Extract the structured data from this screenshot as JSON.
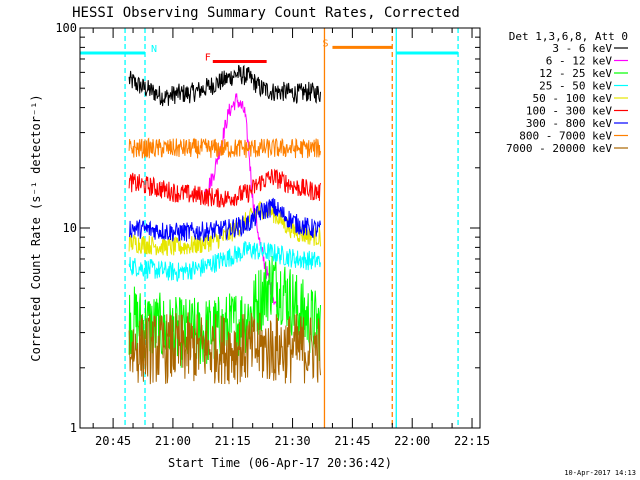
{
  "chart_data": {
    "type": "line",
    "title": "HESSI Observing Summary Count Rates, Corrected",
    "xlabel": "Start Time (06-Apr-17 20:36:42)",
    "ylabel": "Corrected Count Rate (s⁻¹ detector⁻¹)",
    "y_scale": "log",
    "ylim": [
      1,
      100
    ],
    "xlim": [
      "20:36:42",
      "22:17:00"
    ],
    "x_tick_labels": [
      "20:45",
      "21:00",
      "21:15",
      "21:30",
      "21:45",
      "22:00",
      "22:15"
    ],
    "y_tick_labels": [
      "1",
      "10",
      "100"
    ],
    "grid": false,
    "legend_position": "top-right",
    "legend_title": "Det 1,3,6,8, Att 0",
    "timestamp": "10-Apr-2017 14:13",
    "series": [
      {
        "name": "3 - 6 keV",
        "color": "#000000",
        "x": [
          "20:49",
          "20:52",
          "20:55",
          "20:58",
          "21:01",
          "21:04",
          "21:07",
          "21:10",
          "21:13",
          "21:16",
          "21:19",
          "21:22",
          "21:25",
          "21:28",
          "21:31",
          "21:34",
          "21:37"
        ],
        "y": [
          55,
          51,
          48,
          45,
          47,
          47,
          49,
          52,
          55,
          59,
          57,
          50,
          48,
          48,
          47,
          48,
          47
        ]
      },
      {
        "name": "6 - 12 keV",
        "color": "#ff00ff",
        "x": [
          "21:08",
          "21:10",
          "21:12",
          "21:14",
          "21:16",
          "21:18",
          "21:19",
          "21:20",
          "21:22",
          "21:24",
          "21:26"
        ],
        "y": [
          15,
          18,
          26,
          38,
          44,
          38,
          25,
          14,
          8,
          5.5,
          4
        ]
      },
      {
        "name": "12 - 25 keV",
        "color": "#00ff00",
        "x": [
          "20:49",
          "20:55",
          "21:01",
          "21:07",
          "21:13",
          "21:17",
          "21:19",
          "21:22",
          "21:25",
          "21:28",
          "21:31",
          "21:34",
          "21:37"
        ],
        "y": [
          3.5,
          3.2,
          3.0,
          3.0,
          3.1,
          3.4,
          3.6,
          4.5,
          5.5,
          4.8,
          4.0,
          3.5,
          3.2
        ]
      },
      {
        "name": "25 - 50 keV",
        "color": "#00ffff",
        "x": [
          "20:49",
          "20:55",
          "21:01",
          "21:07",
          "21:13",
          "21:19",
          "21:25",
          "21:31",
          "21:37"
        ],
        "y": [
          6.5,
          6.2,
          6.0,
          6.3,
          7.0,
          7.8,
          7.5,
          7.0,
          6.8
        ]
      },
      {
        "name": "50 - 100 keV",
        "color": "#e6e600",
        "x": [
          "20:49",
          "20:55",
          "21:01",
          "21:07",
          "21:13",
          "21:19",
          "21:22",
          "21:25",
          "21:28",
          "21:31",
          "21:34",
          "21:37"
        ],
        "y": [
          8.5,
          8.2,
          8.0,
          8.3,
          9.0,
          11.0,
          12.5,
          12.0,
          10.5,
          9.5,
          9.2,
          9.0
        ]
      },
      {
        "name": "100 - 300 keV",
        "color": "#ff0000",
        "x": [
          "20:49",
          "20:55",
          "21:01",
          "21:07",
          "21:13",
          "21:19",
          "21:22",
          "21:25",
          "21:28",
          "21:31",
          "21:34",
          "21:37"
        ],
        "y": [
          17,
          16,
          15,
          14.5,
          14,
          15,
          17,
          18,
          17,
          16,
          15.5,
          15
        ]
      },
      {
        "name": "300 - 800 keV",
        "color": "#0000ff",
        "x": [
          "20:49",
          "20:55",
          "21:01",
          "21:07",
          "21:13",
          "21:19",
          "21:22",
          "21:25",
          "21:28",
          "21:31",
          "21:34",
          "21:37"
        ],
        "y": [
          10,
          9.8,
          9.5,
          9.6,
          9.8,
          10.5,
          12,
          12.8,
          11.5,
          10.5,
          10,
          9.8
        ]
      },
      {
        "name": "800 - 7000 keV",
        "color": "#ff8000",
        "x": [
          "20:49",
          "20:55",
          "21:01",
          "21:07",
          "21:13",
          "21:19",
          "21:25",
          "21:31",
          "21:37"
        ],
        "y": [
          25,
          25,
          25,
          25,
          25,
          25,
          25,
          25,
          25
        ]
      },
      {
        "name": "7000 - 20000 keV",
        "color": "#aa6600",
        "x": [
          "20:49",
          "20:55",
          "21:01",
          "21:07",
          "21:13",
          "21:19",
          "21:25",
          "21:31",
          "21:37"
        ],
        "y": [
          2.5,
          2.5,
          2.5,
          2.5,
          2.5,
          2.5,
          2.5,
          2.5,
          2.5
        ]
      }
    ],
    "annotations": [
      {
        "label": "N",
        "color": "#00ffff",
        "type": "night",
        "x_start": "20:36:42",
        "x_end": "20:53:00",
        "level": 75
      },
      {
        "label": "F",
        "color": "#ff0000",
        "type": "flare",
        "x_start": "21:10:00",
        "x_end": "21:23:30",
        "level": 68
      },
      {
        "label": "S",
        "color": "#ff8000",
        "type": "saa",
        "x_start": "21:40:00",
        "x_end": "21:55:00",
        "level": 80
      },
      {
        "label": "",
        "color": "#00ffff",
        "type": "night",
        "x_start": "21:56:00",
        "x_end": "22:11:30",
        "level": 75
      }
    ],
    "vertical_markers": [
      {
        "x": "20:48",
        "color": "#00ffff",
        "style": "dashed"
      },
      {
        "x": "20:53",
        "color": "#00ffff",
        "style": "dashed"
      },
      {
        "x": "21:38",
        "color": "#ff8000",
        "style": "solid"
      },
      {
        "x": "21:55",
        "color": "#ff8000",
        "style": "dashed"
      },
      {
        "x": "21:56",
        "color": "#00ffff",
        "style": "solid"
      },
      {
        "x": "22:11:30",
        "color": "#00ffff",
        "style": "dashed"
      }
    ]
  }
}
